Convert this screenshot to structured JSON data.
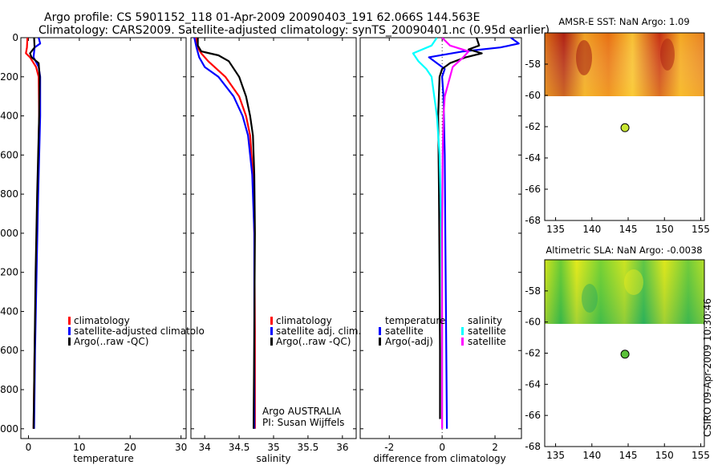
{
  "figure": {
    "title_line1": "Argo profile: CS 5901152_118 01-Apr-2009 20090403_191 62.066S 144.563E",
    "title_line2": "Climatology: CARS2009. Satellite-adjusted climatology: synTS_20090401.nc (0.95d earlier)",
    "footer_stamp": "CSIRO 09-Apr-2009 10:30:46",
    "colors": {
      "climatology": "#ff0000",
      "satellite": "#0000ff",
      "argo": "#000000",
      "salinity_sat": "#00ffff",
      "salinity_argo": "#ff00ff",
      "marker": "#c8e632"
    }
  },
  "chart_data": [
    {
      "id": "temperature",
      "type": "line",
      "xlabel": "temperature",
      "ylabel": "",
      "xlim": [
        -1.5,
        31
      ],
      "ylim": [
        2050,
        0
      ],
      "xticks": [
        0,
        10,
        20,
        30
      ],
      "yticks": [
        0,
        200,
        400,
        600,
        800,
        1000,
        1200,
        1400,
        1600,
        1800,
        2000
      ],
      "legend": [
        "climatology",
        "satellite-adjusted climatolo",
        "Argo(..raw -QC)"
      ],
      "series": [
        {
          "name": "climatology",
          "color": "#ff0000",
          "depth": [
            0,
            50,
            80,
            100,
            150,
            200,
            400,
            800,
            1200,
            1600,
            2000
          ],
          "values": [
            -0.2,
            -0.3,
            -0.5,
            0.3,
            1.5,
            2.0,
            2.1,
            1.8,
            1.5,
            1.2,
            1.0
          ]
        },
        {
          "name": "satellite-adjusted climatolo",
          "color": "#0000ff",
          "depth": [
            0,
            30,
            50,
            100,
            150,
            200,
            400,
            800,
            1200,
            1600,
            2000
          ],
          "values": [
            2.0,
            2.3,
            1.2,
            1.0,
            2.0,
            2.3,
            2.3,
            1.9,
            1.6,
            1.3,
            1.1
          ]
        },
        {
          "name": "Argo(..raw -QC)",
          "color": "#000000",
          "depth": [
            0,
            50,
            80,
            100,
            130,
            200,
            400,
            800,
            1200,
            1600,
            2000
          ],
          "values": [
            1.1,
            1.2,
            0.3,
            0.6,
            2.0,
            2.2,
            2.1,
            1.7,
            1.4,
            1.2,
            1.0
          ]
        }
      ]
    },
    {
      "id": "salinity",
      "type": "line",
      "xlabel": "salinity",
      "ylabel": "",
      "xlim": [
        33.8,
        36.2
      ],
      "ylim": [
        2050,
        0
      ],
      "xticks": [
        34,
        34.5,
        35,
        35.5,
        36
      ],
      "xticklabels": [
        "34",
        "34.5",
        "35",
        "35.5",
        "36"
      ],
      "legend": [
        "climatology",
        "satellite adj. clim.",
        "Argo(..raw -QC)"
      ],
      "annotations": [
        "Argo AUSTRALIA",
        "PI: Susan Wijffels"
      ],
      "series": [
        {
          "name": "climatology",
          "color": "#ff0000",
          "depth": [
            0,
            40,
            80,
            120,
            200,
            300,
            400,
            500,
            700,
            1000,
            1500,
            2000
          ],
          "values": [
            33.88,
            33.88,
            33.95,
            34.05,
            34.3,
            34.5,
            34.6,
            34.66,
            34.7,
            34.72,
            34.73,
            34.73
          ]
        },
        {
          "name": "satellite adj. clim.",
          "color": "#0000ff",
          "depth": [
            0,
            50,
            100,
            150,
            200,
            300,
            400,
            500,
            700,
            1000,
            1500,
            2000
          ],
          "values": [
            33.85,
            33.88,
            33.92,
            34.0,
            34.2,
            34.42,
            34.55,
            34.63,
            34.69,
            34.72,
            34.72,
            34.72
          ]
        },
        {
          "name": "Argo(..raw -QC)",
          "color": "#000000",
          "depth": [
            0,
            40,
            70,
            90,
            120,
            200,
            300,
            400,
            500,
            700,
            1000,
            1500,
            2000
          ],
          "values": [
            33.9,
            33.9,
            33.95,
            34.2,
            34.35,
            34.5,
            34.6,
            34.66,
            34.7,
            34.72,
            34.73,
            34.72,
            34.71
          ]
        }
      ]
    },
    {
      "id": "difference",
      "type": "line",
      "xlabel": "difference from climatology",
      "ylabel": "",
      "xlim": [
        -3.1,
        3.0
      ],
      "ylim": [
        2050,
        0
      ],
      "xticks": [
        -2,
        0,
        2
      ],
      "legend_headers": [
        "temperature",
        "salinity"
      ],
      "legend": [
        "satellite",
        "Argo(-adj)",
        "satellite",
        "Argo(-adj)"
      ],
      "series": [
        {
          "name": "temperature satellite",
          "color": "#0000ff",
          "depth": [
            0,
            30,
            50,
            70,
            100,
            130,
            160,
            200,
            300,
            600,
            1000,
            1500,
            2000
          ],
          "values": [
            2.6,
            2.9,
            2.2,
            0.8,
            -0.5,
            -0.2,
            0.1,
            0.0,
            0.05,
            0.1,
            0.12,
            0.15,
            0.18
          ]
        },
        {
          "name": "temperature Argo(-adj)",
          "color": "#000000",
          "depth": [
            0,
            40,
            60,
            80,
            100,
            130,
            160,
            200,
            400,
            800,
            1200,
            1600,
            1950
          ],
          "values": [
            1.3,
            1.4,
            1.0,
            1.5,
            0.9,
            0.3,
            0.0,
            -0.1,
            -0.15,
            -0.12,
            -0.1,
            -0.08,
            -0.08
          ]
        },
        {
          "name": "salinity satellite",
          "color": "#00ffff",
          "depth": [
            0,
            40,
            80,
            120,
            160,
            200,
            400,
            600,
            1000,
            1500,
            2000
          ],
          "values": [
            -0.2,
            -0.4,
            -1.1,
            -0.9,
            -0.6,
            -0.4,
            -0.2,
            -0.1,
            -0.03,
            0.0,
            0.0
          ]
        },
        {
          "name": "salinity Argo(-adj)",
          "color": "#ff00ff",
          "depth": [
            0,
            40,
            70,
            100,
            150,
            200,
            300,
            400,
            600,
            1000,
            1500,
            2000
          ],
          "values": [
            0.0,
            0.3,
            1.0,
            0.8,
            0.4,
            0.3,
            0.1,
            0.05,
            0.02,
            0.0,
            0.0,
            0.0
          ]
        }
      ]
    },
    {
      "id": "sst-map",
      "type": "heatmap",
      "title": "AMSR-E SST: NaN Argo: 1.09",
      "xlim": [
        133.5,
        155.5
      ],
      "ylim": [
        -68,
        -56
      ],
      "xticks": [
        135,
        140,
        145,
        150,
        155
      ],
      "yticks": [
        -58,
        -60,
        -62,
        -64,
        -66,
        -68
      ],
      "marker": {
        "lon": 144.563,
        "lat": -62.066
      },
      "field_extent_lat": [
        -60,
        -56
      ]
    },
    {
      "id": "sla-map",
      "type": "heatmap",
      "title": "Altimetric SLA: NaN Argo: -0.0038",
      "xlim": [
        133.5,
        155.5
      ],
      "ylim": [
        -68,
        -56
      ],
      "xticks": [
        135,
        140,
        145,
        150,
        155
      ],
      "yticks": [
        -58,
        -60,
        -62,
        -64,
        -66,
        -68
      ],
      "marker": {
        "lon": 144.563,
        "lat": -62.066
      },
      "field_extent_lat": [
        -60,
        -56
      ]
    }
  ]
}
